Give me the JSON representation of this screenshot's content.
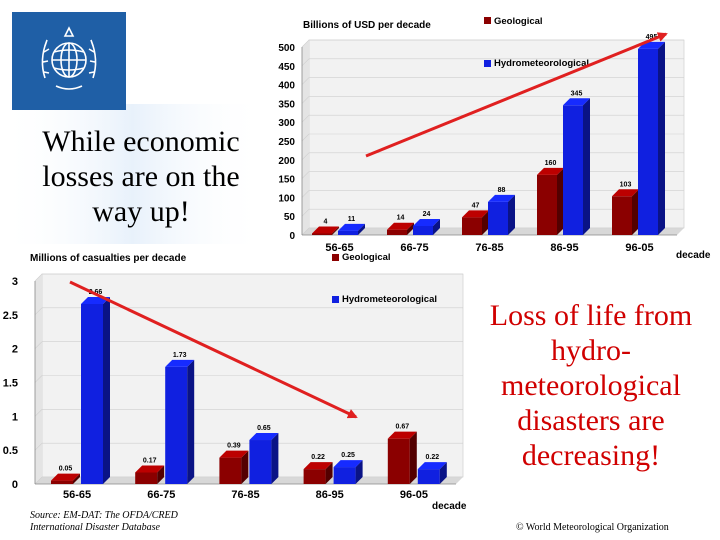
{
  "slide": {
    "slogan_economic": "While economic losses are on the way up!",
    "slogan_life": "Loss of life from hydro-meteorological disasters are decreasing!",
    "source_line1": "Source: EM-DAT: The OFDA/CRED",
    "source_line2": "International Disaster Database",
    "copyright": "© World Meteorological Organization"
  },
  "colors": {
    "geological": "#8b0000",
    "hydrometeorological": "#1020e0",
    "trend_arrow": "#e02020",
    "logo_blue": "#1f5fa6"
  },
  "icons": {
    "logo": "wmo-emblem"
  },
  "chart_data": [
    {
      "type": "bar",
      "ylabel": "Billions of USD per decade",
      "xlabel": "decade",
      "categories": [
        "56-65",
        "66-75",
        "76-85",
        "86-95",
        "96-05"
      ],
      "ylim": [
        0,
        500
      ],
      "yticks": [
        0,
        50,
        100,
        150,
        200,
        250,
        300,
        350,
        400,
        450,
        500
      ],
      "legend_position": "top-right",
      "series": [
        {
          "name": "Geological",
          "values": [
            4,
            14,
            47,
            160,
            103
          ],
          "labels": [
            "4",
            "14",
            "47",
            "160",
            "103"
          ]
        },
        {
          "name": "Hydrometeorological",
          "values": [
            11,
            24,
            88,
            345,
            495
          ],
          "labels": [
            "11",
            "24",
            "88",
            "345",
            "495"
          ]
        }
      ]
    },
    {
      "type": "bar",
      "ylabel": "Millions of casualties per decade",
      "xlabel": "decade",
      "categories": [
        "56-65",
        "66-75",
        "76-85",
        "86-95",
        "96-05"
      ],
      "ylim": [
        0,
        3
      ],
      "yticks": [
        "0",
        "0.5",
        "1",
        "1.5",
        "2",
        "2.5",
        "3"
      ],
      "legend_position": "top-right",
      "series": [
        {
          "name": "Geological",
          "values": [
            0.05,
            0.17,
            0.39,
            0.22,
            0.67
          ],
          "labels": [
            "0.05",
            "0.17",
            "0.39",
            "0.22",
            "0.67"
          ]
        },
        {
          "name": "Hydrometeorological",
          "values": [
            2.66,
            1.73,
            0.65,
            0.25,
            0.22
          ],
          "labels": [
            "2.66",
            "1.73",
            "0.65",
            "0.25",
            "0.22"
          ]
        }
      ]
    }
  ]
}
